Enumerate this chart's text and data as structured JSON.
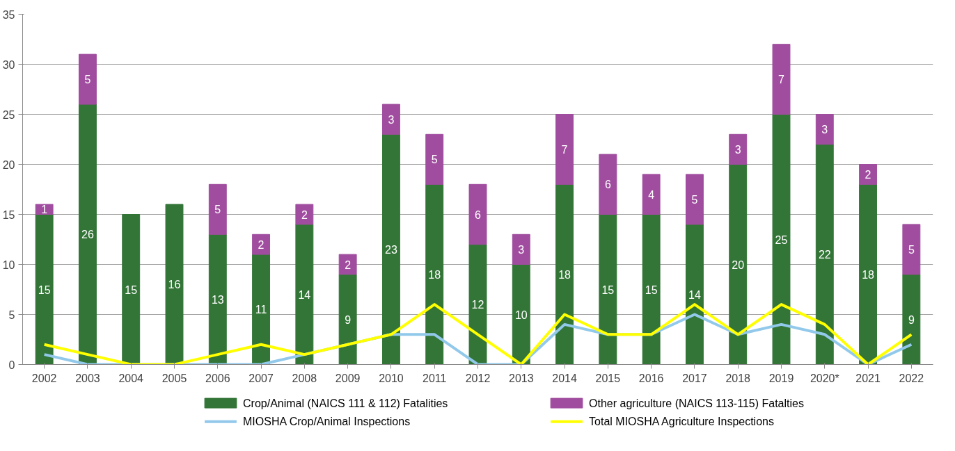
{
  "chart_data": {
    "type": "bar",
    "stacked": true,
    "categories": [
      "2002",
      "2003",
      "2004",
      "2005",
      "2006",
      "2007",
      "2008",
      "2009",
      "2010",
      "2011",
      "2012",
      "2013",
      "2014",
      "2015",
      "2016",
      "2017",
      "2018",
      "2019",
      "2020*",
      "2021",
      "2022"
    ],
    "series": [
      {
        "name": "Crop/Animal (NAICS 111 & 112) Fatalities",
        "color": "#337537",
        "data_labels": true,
        "values": [
          15,
          26,
          15,
          16,
          13,
          11,
          14,
          9,
          23,
          18,
          12,
          10,
          18,
          15,
          15,
          14,
          20,
          25,
          22,
          18,
          9
        ]
      },
      {
        "name": "Other agriculture (NAICS 113-115) Fatalties",
        "color": "#a04d9f",
        "data_labels": true,
        "values": [
          1,
          5,
          null,
          null,
          5,
          2,
          2,
          2,
          3,
          5,
          6,
          3,
          7,
          6,
          4,
          5,
          3,
          7,
          3,
          2,
          5
        ]
      },
      {
        "name": "MIOSHA Crop/Animal Inspections",
        "type": "line",
        "color": "#92c9eb",
        "values": [
          1,
          0,
          0,
          0,
          0,
          0,
          1,
          2,
          3,
          3,
          0,
          0,
          4,
          3,
          3,
          5,
          3,
          4,
          3,
          0,
          2
        ]
      },
      {
        "name": "Total MIOSHA Agriculture Inspections",
        "type": "line",
        "color": "#ffff00",
        "values": [
          2,
          1,
          0,
          0,
          1,
          2,
          1,
          2,
          3,
          6,
          3,
          0,
          5,
          3,
          3,
          6,
          3,
          6,
          4,
          0,
          3
        ]
      }
    ],
    "ylim": [
      0,
      35
    ],
    "yticks": [
      0,
      5,
      10,
      15,
      20,
      25,
      30,
      35
    ],
    "grid": "y",
    "legend": "bottom",
    "line_style": "solid",
    "marker": "none"
  }
}
